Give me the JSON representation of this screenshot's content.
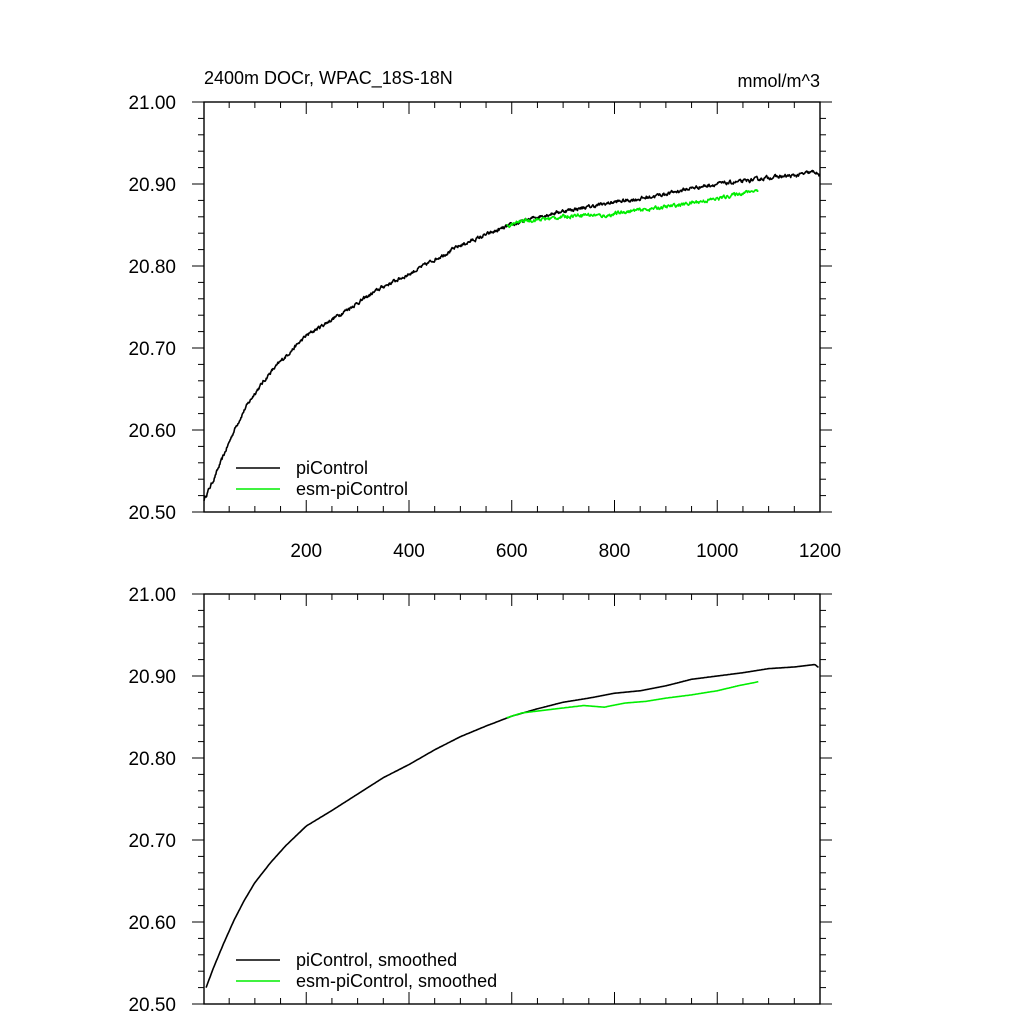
{
  "figure": {
    "title_left": "2400m DOCr, WPAC_18S-18N",
    "title_right": "mmol/m^3"
  },
  "colors": {
    "piControl": "#000000",
    "esm_piControl": "#00ee00"
  },
  "chart_data": [
    {
      "type": "line",
      "title": "2400m DOCr, WPAC_18S-18N",
      "units": "mmol/m^3",
      "xlim": [
        1,
        1200
      ],
      "ylim": [
        20.5,
        21.0
      ],
      "x_major_ticks": [
        200,
        400,
        600,
        800,
        1000,
        1200
      ],
      "x_tick_labels": [
        "200",
        "400",
        "600",
        "800",
        "1000",
        "1200"
      ],
      "y_major_ticks": [
        20.5,
        20.6,
        20.7,
        20.8,
        20.9,
        21.0
      ],
      "y_tick_labels": [
        "20.50",
        "20.60",
        "20.70",
        "20.80",
        "20.90",
        "21.00"
      ],
      "legend_position": "bottom-left",
      "series": [
        {
          "name": "piControl",
          "color": "#000000",
          "noisy": true,
          "points": [
            [
              1,
              20.515
            ],
            [
              20,
              20.54
            ],
            [
              40,
              20.57
            ],
            [
              60,
              20.6
            ],
            [
              80,
              20.625
            ],
            [
              100,
              20.645
            ],
            [
              130,
              20.67
            ],
            [
              160,
              20.69
            ],
            [
              200,
              20.715
            ],
            [
              250,
              20.735
            ],
            [
              300,
              20.755
            ],
            [
              350,
              20.775
            ],
            [
              400,
              20.79
            ],
            [
              450,
              20.808
            ],
            [
              500,
              20.825
            ],
            [
              550,
              20.838
            ],
            [
              600,
              20.85
            ],
            [
              650,
              20.86
            ],
            [
              700,
              20.867
            ],
            [
              750,
              20.872
            ],
            [
              800,
              20.878
            ],
            [
              850,
              20.882
            ],
            [
              900,
              20.888
            ],
            [
              950,
              20.895
            ],
            [
              1000,
              20.9
            ],
            [
              1050,
              20.903
            ],
            [
              1100,
              20.908
            ],
            [
              1150,
              20.91
            ],
            [
              1190,
              20.915
            ],
            [
              1200,
              20.91
            ]
          ]
        },
        {
          "name": "esm-piControl",
          "color": "#00ee00",
          "noisy": true,
          "points": [
            [
              590,
              20.848
            ],
            [
              620,
              20.855
            ],
            [
              660,
              20.857
            ],
            [
              700,
              20.86
            ],
            [
              740,
              20.863
            ],
            [
              780,
              20.861
            ],
            [
              820,
              20.866
            ],
            [
              860,
              20.869
            ],
            [
              900,
              20.872
            ],
            [
              950,
              20.877
            ],
            [
              1000,
              20.882
            ],
            [
              1040,
              20.888
            ],
            [
              1080,
              20.893
            ]
          ]
        }
      ]
    },
    {
      "type": "line",
      "title": "",
      "xlim": [
        1,
        1200
      ],
      "ylim": [
        20.5,
        21.0
      ],
      "x_major_ticks": [
        200,
        400,
        600,
        800,
        1000,
        1200
      ],
      "y_major_ticks": [
        20.5,
        20.6,
        20.7,
        20.8,
        20.9,
        21.0
      ],
      "y_tick_labels": [
        "20.50",
        "20.60",
        "20.70",
        "20.80",
        "20.90",
        "21.00"
      ],
      "legend_position": "bottom-left",
      "series": [
        {
          "name": "piControl, smoothed",
          "color": "#000000",
          "noisy": false,
          "points": [
            [
              5,
              20.52
            ],
            [
              20,
              20.545
            ],
            [
              40,
              20.575
            ],
            [
              60,
              20.603
            ],
            [
              80,
              20.627
            ],
            [
              100,
              20.648
            ],
            [
              130,
              20.672
            ],
            [
              160,
              20.693
            ],
            [
              200,
              20.717
            ],
            [
              250,
              20.736
            ],
            [
              300,
              20.756
            ],
            [
              350,
              20.776
            ],
            [
              400,
              20.792
            ],
            [
              450,
              20.81
            ],
            [
              500,
              20.826
            ],
            [
              550,
              20.839
            ],
            [
              600,
              20.851
            ],
            [
              650,
              20.86
            ],
            [
              700,
              20.868
            ],
            [
              750,
              20.873
            ],
            [
              800,
              20.879
            ],
            [
              850,
              20.882
            ],
            [
              900,
              20.888
            ],
            [
              950,
              20.896
            ],
            [
              1000,
              20.9
            ],
            [
              1050,
              20.904
            ],
            [
              1100,
              20.909
            ],
            [
              1150,
              20.911
            ],
            [
              1190,
              20.914
            ],
            [
              1198,
              20.91
            ]
          ]
        },
        {
          "name": "esm-piControl, smoothed",
          "color": "#00ee00",
          "noisy": false,
          "points": [
            [
              590,
              20.849
            ],
            [
              620,
              20.855
            ],
            [
              660,
              20.858
            ],
            [
              700,
              20.861
            ],
            [
              740,
              20.864
            ],
            [
              780,
              20.862
            ],
            [
              820,
              20.867
            ],
            [
              860,
              20.869
            ],
            [
              900,
              20.873
            ],
            [
              950,
              20.877
            ],
            [
              1000,
              20.882
            ],
            [
              1040,
              20.888
            ],
            [
              1080,
              20.893
            ]
          ]
        }
      ]
    }
  ]
}
